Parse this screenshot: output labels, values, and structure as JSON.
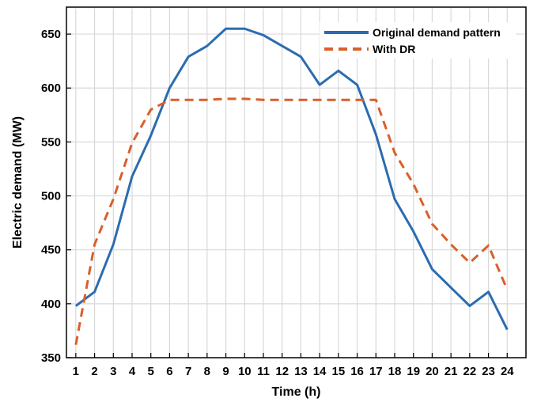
{
  "chart_data": {
    "type": "line",
    "xlabel": "Time (h)",
    "ylabel": "Electric demand (MW)",
    "x": [
      1,
      2,
      3,
      4,
      5,
      6,
      7,
      8,
      9,
      10,
      11,
      12,
      13,
      14,
      15,
      16,
      17,
      18,
      19,
      20,
      21,
      22,
      23,
      24
    ],
    "xlim": [
      0.5,
      25
    ],
    "ylim": [
      350,
      675
    ],
    "yticks": [
      350,
      400,
      450,
      500,
      550,
      600,
      650
    ],
    "grid": true,
    "legend_position": "top-right",
    "series": [
      {
        "name": "Original demand pattern",
        "color": "#2b6cb0",
        "style": "solid",
        "values": [
          398,
          411,
          455,
          518,
          556,
          600,
          629,
          639,
          655,
          655,
          649,
          639,
          629,
          603,
          616,
          603,
          557,
          497,
          467,
          432,
          415,
          398,
          411,
          376
        ]
      },
      {
        "name": "With DR",
        "color": "#d95f2b",
        "style": "dashed",
        "values": [
          362,
          455,
          497,
          549,
          580,
          589,
          589,
          589,
          590,
          590,
          589,
          589,
          589,
          589,
          589,
          589,
          589,
          540,
          511,
          474,
          455,
          438,
          454,
          413
        ]
      }
    ]
  }
}
